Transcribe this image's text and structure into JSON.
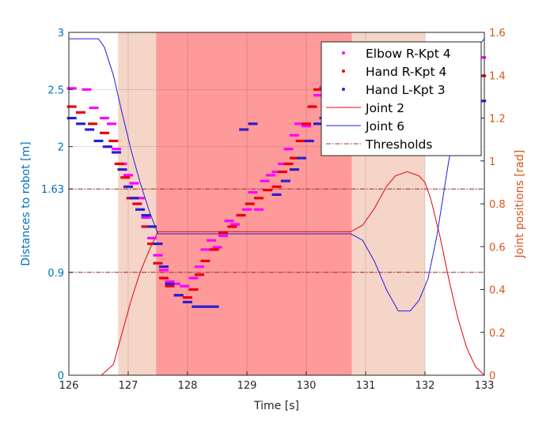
{
  "chart_data": {
    "type": "scatter",
    "title": "",
    "xlabel": "Time [s]",
    "ylabel_left": "Distances to robot [m]",
    "ylabel_right": "Joint positions [rad]",
    "xlim": [
      126,
      133
    ],
    "ylim_left": [
      0,
      3
    ],
    "ylim_right": [
      0,
      1.6
    ],
    "grid": true,
    "legend_position": "top-right",
    "x_ticks": [
      "126",
      "127",
      "128",
      "129",
      "130",
      "131",
      "132",
      "133"
    ],
    "y_left_ticks": [
      0,
      0.9,
      1.63,
      2,
      2.5,
      3
    ],
    "y_left_tick_labels": [
      "0",
      "0.9",
      "1.63",
      "2",
      "2.5",
      "3"
    ],
    "y_right_ticks": [
      "0",
      "0.2",
      "0.4",
      "0.6",
      "0.8",
      "1",
      "1.2",
      "1.4",
      "1.6"
    ],
    "colors": {
      "left_axis": "#0072BD",
      "right_axis": "#D95319",
      "elbow": "#FF00FF",
      "hand_r": "#E8000B",
      "hand_l": "#2A1FD0",
      "joint2": "#E8000B",
      "joint6": "#1F1FE0",
      "threshold": "#A52A2A",
      "light_band": "#F5D5C8",
      "dark_band": "#FF9A9A"
    },
    "bands": [
      {
        "x": [
          126.83,
          127.47
        ],
        "level": "light"
      },
      {
        "x": [
          127.47,
          130.77
        ],
        "level": "dark"
      },
      {
        "x": [
          130.77,
          132.0
        ],
        "level": "light"
      }
    ],
    "thresholds": [
      1.63,
      0.9
    ],
    "legend": [
      "Elbow R-Kpt 4",
      "Hand R-Kpt 4",
      "Hand L-Kpt 3",
      "Joint 2",
      "Joint 6",
      "Thresholds"
    ],
    "series": [
      {
        "name": "Elbow R-Kpt 4",
        "axis": "left",
        "kind": "points",
        "x": [
          126.05,
          126.3,
          126.42,
          126.6,
          126.72,
          126.8,
          126.9,
          127.0,
          127.1,
          127.2,
          127.3,
          127.4,
          127.5,
          127.6,
          127.7,
          127.8,
          127.95,
          128.1,
          128.2,
          128.3,
          128.4,
          128.5,
          128.6,
          128.7,
          128.8,
          128.9,
          129.0,
          129.1,
          129.2,
          129.3,
          129.4,
          129.5,
          129.6,
          129.7,
          129.8,
          129.88,
          130.0,
          130.1,
          130.2,
          130.3,
          132.95
        ],
        "y": [
          2.51,
          2.5,
          2.34,
          2.25,
          2.2,
          1.98,
          1.85,
          1.75,
          1.68,
          1.55,
          1.38,
          1.2,
          1.05,
          0.92,
          0.82,
          0.8,
          0.78,
          0.85,
          0.95,
          1.1,
          1.18,
          1.12,
          1.22,
          1.35,
          1.32,
          1.4,
          1.45,
          1.6,
          1.45,
          1.7,
          1.75,
          1.78,
          1.85,
          1.98,
          2.1,
          2.2,
          2.18,
          2.35,
          2.45,
          2.52,
          2.78
        ]
      },
      {
        "name": "Hand R-Kpt 4",
        "axis": "left",
        "kind": "points",
        "x": [
          126.05,
          126.2,
          126.4,
          126.6,
          126.75,
          126.85,
          126.95,
          127.05,
          127.15,
          127.3,
          127.4,
          127.5,
          127.6,
          127.7,
          127.85,
          128.0,
          128.1,
          128.2,
          128.3,
          128.45,
          128.6,
          128.75,
          128.9,
          129.05,
          129.2,
          129.35,
          129.5,
          129.6,
          129.7,
          129.8,
          129.9,
          130.0,
          130.1,
          130.2,
          130.35,
          130.5,
          130.65,
          132.95
        ],
        "y": [
          2.35,
          2.3,
          2.2,
          2.12,
          2.05,
          1.85,
          1.73,
          1.55,
          1.5,
          1.3,
          1.15,
          0.98,
          0.85,
          0.78,
          0.7,
          0.68,
          0.75,
          0.88,
          1.0,
          1.1,
          1.25,
          1.3,
          1.4,
          1.5,
          1.55,
          1.62,
          1.65,
          1.78,
          1.85,
          1.9,
          2.05,
          2.2,
          2.35,
          2.5,
          2.58,
          2.62,
          2.65,
          2.62
        ]
      },
      {
        "name": "Hand L-Kpt 3",
        "axis": "left",
        "kind": "points",
        "x": [
          126.05,
          126.2,
          126.35,
          126.5,
          126.65,
          126.8,
          126.9,
          127.0,
          127.1,
          127.2,
          127.3,
          127.4,
          127.5,
          127.6,
          127.7,
          127.85,
          128.0,
          128.15,
          128.3,
          128.45,
          128.95,
          129.1,
          129.5,
          129.65,
          129.8,
          129.92,
          130.05,
          130.2,
          130.3,
          132.95
        ],
        "y": [
          2.25,
          2.2,
          2.15,
          2.05,
          2.0,
          1.95,
          1.8,
          1.65,
          1.55,
          1.45,
          1.4,
          1.3,
          1.15,
          0.95,
          0.8,
          0.7,
          0.64,
          0.6,
          0.6,
          0.6,
          2.15,
          2.2,
          1.58,
          1.7,
          1.8,
          1.9,
          2.05,
          2.2,
          2.25,
          2.4
        ]
      },
      {
        "name": "Joint 2",
        "axis": "right",
        "kind": "line",
        "x": [
          126,
          126.55,
          126.75,
          126.9,
          127.05,
          127.2,
          127.35,
          127.5,
          130.75,
          130.95,
          131.15,
          131.35,
          131.5,
          131.7,
          131.9,
          132.0,
          132.1,
          132.25,
          132.4,
          132.55,
          132.7,
          132.85,
          133.0
        ],
        "y": [
          0,
          0,
          0.05,
          0.2,
          0.35,
          0.48,
          0.58,
          0.67,
          0.67,
          0.7,
          0.78,
          0.88,
          0.93,
          0.95,
          0.93,
          0.9,
          0.82,
          0.65,
          0.45,
          0.27,
          0.13,
          0.04,
          0
        ]
      },
      {
        "name": "Joint 6",
        "axis": "right",
        "kind": "line",
        "x": [
          126,
          126.5,
          126.6,
          126.75,
          126.9,
          127.05,
          127.2,
          127.35,
          127.5,
          130.75,
          130.95,
          131.15,
          131.35,
          131.55,
          131.75,
          131.9,
          132.05,
          132.2,
          132.4,
          132.6,
          132.8,
          133.0
        ],
        "y": [
          1.57,
          1.57,
          1.53,
          1.4,
          1.22,
          1.05,
          0.9,
          0.77,
          0.66,
          0.66,
          0.63,
          0.53,
          0.4,
          0.3,
          0.3,
          0.35,
          0.45,
          0.65,
          1.0,
          1.3,
          1.5,
          1.57
        ]
      },
      {
        "name": "Thresholds",
        "axis": "left",
        "kind": "hline",
        "x": [
          126,
          133
        ],
        "y": [
          1.63,
          0.9
        ]
      }
    ]
  }
}
